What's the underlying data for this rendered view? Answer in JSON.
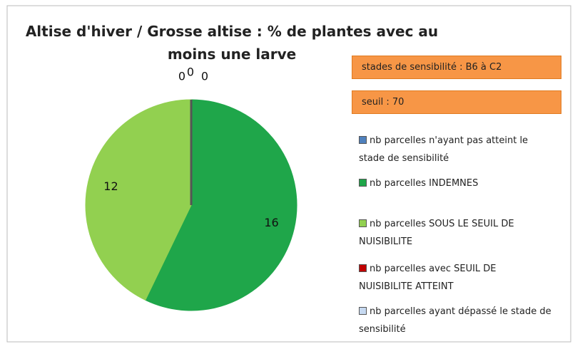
{
  "chart_data": {
    "type": "pie",
    "title": "Altise d'hiver / Grosse altise : % de plantes avec au moins une larve",
    "annotations": [
      "stades de sensibilité : B6 à C2",
      "seuil : 70"
    ],
    "categories": [
      "nb parcelles n'ayant pas atteint le stade de sensibilité",
      "nb parcelles INDEMNES",
      "nb parcelles SOUS LE SEUIL DE NUISIBILITE",
      "nb parcelles avec SEUIL DE NUISIBILITE ATTEINT",
      "nb parcelles ayant dépassé le stade de sensibilité"
    ],
    "values": [
      0,
      16,
      12,
      0,
      0
    ],
    "colors": [
      "#4f81bd",
      "#1fa64a",
      "#92d050",
      "#c00000",
      "#c6d9f1"
    ],
    "legend": "right"
  }
}
